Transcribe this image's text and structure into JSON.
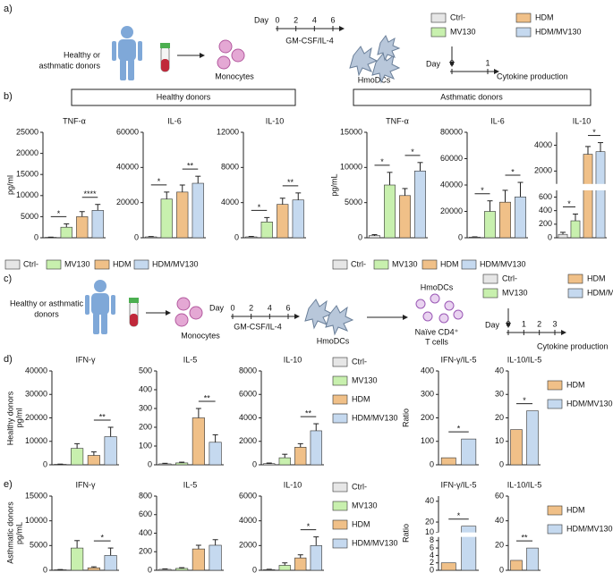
{
  "panel_a": {
    "label": "a)",
    "donors": [
      "Healthy or",
      "asthmatic donors"
    ],
    "cells": "Monocytes",
    "day": "Day",
    "days": [
      0,
      2,
      4,
      6
    ],
    "treatment": "GM-CSF/IL-4",
    "result": "HmoDCs",
    "stim_days": [
      0,
      1
    ],
    "readout": "Cytokine production"
  },
  "panel_b": {
    "label": "b)",
    "healthy": "Healthy donors",
    "asthmatic": "Asthmatic donors"
  },
  "panel_c": {
    "label": "c)",
    "donors": [
      "Healthy or asthmatic",
      "donors"
    ],
    "cells": "Monocytes",
    "day": "Day",
    "days": [
      0,
      2,
      4,
      6
    ],
    "treatment": "GM-CSF/IL-4",
    "result": "HmoDCs",
    "coculture": "HmoDCs",
    "tcells": [
      "Naïve CD4⁺",
      "T cells"
    ],
    "stim_days": [
      0,
      1,
      2,
      3
    ],
    "readout": "Cytokine production"
  },
  "panel_d": {
    "label": "d)",
    "group": "Healthy donors"
  },
  "panel_e": {
    "label": "e)",
    "group": "Asthmatic donors"
  },
  "chart_data": [
    {
      "type": "bar",
      "title": "TNF-α",
      "ylabel": "pg/ml",
      "categories": [
        "Ctrl-",
        "MV130",
        "HDM",
        "HDM/MV130"
      ],
      "colors": [
        "#e6e6e6",
        "#c8f0ae",
        "#f0c088",
        "#c5d9ef"
      ],
      "values": [
        100,
        2500,
        5000,
        6500
      ],
      "errors": [
        50,
        800,
        1200,
        1400
      ],
      "ylim": [
        0,
        25000
      ],
      "yticks": [
        0,
        5000,
        10000,
        15000,
        20000,
        25000
      ],
      "significance": [
        {
          "label": "*",
          "from": "Ctrl-",
          "to": "MV130"
        },
        {
          "label": "****",
          "from": "HDM",
          "to": "HDM/MV130"
        }
      ],
      "legend": "bottom"
    },
    {
      "type": "bar",
      "title": "IL-6",
      "categories": [
        "Ctrl-",
        "MV130",
        "HDM",
        "HDM/MV130"
      ],
      "colors": [
        "#e6e6e6",
        "#c8f0ae",
        "#f0c088",
        "#c5d9ef"
      ],
      "values": [
        500,
        22000,
        26000,
        31000
      ],
      "errors": [
        200,
        4000,
        4000,
        4000
      ],
      "ylim": [
        0,
        60000
      ],
      "yticks": [
        0,
        20000,
        40000,
        60000
      ],
      "significance": [
        {
          "label": "*",
          "from": "Ctrl-",
          "to": "MV130"
        },
        {
          "label": "**",
          "from": "HDM",
          "to": "HDM/MV130"
        }
      ]
    },
    {
      "type": "bar",
      "title": "IL-10",
      "categories": [
        "Ctrl-",
        "MV130",
        "HDM",
        "HDM/MV130"
      ],
      "colors": [
        "#e6e6e6",
        "#c8f0ae",
        "#f0c088",
        "#c5d9ef"
      ],
      "values": [
        100,
        1800,
        3800,
        4300
      ],
      "errors": [
        50,
        500,
        700,
        800
      ],
      "ylim": [
        0,
        12000
      ],
      "yticks": [
        0,
        4000,
        8000,
        12000
      ],
      "significance": [
        {
          "label": "*",
          "from": "Ctrl-",
          "to": "MV130"
        },
        {
          "label": "**",
          "from": "HDM",
          "to": "HDM/MV130"
        }
      ]
    },
    {
      "type": "bar",
      "title": "TNF-α",
      "ylabel": "pg/mL",
      "categories": [
        "Ctrl-",
        "MV130",
        "HDM",
        "HDM/MV130"
      ],
      "colors": [
        "#e6e6e6",
        "#c8f0ae",
        "#f0c088",
        "#c5d9ef"
      ],
      "values": [
        300,
        7500,
        6000,
        9500
      ],
      "errors": [
        150,
        1800,
        1000,
        1200
      ],
      "ylim": [
        0,
        15000
      ],
      "yticks": [
        0,
        5000,
        10000,
        15000
      ],
      "significance": [
        {
          "label": "*",
          "from": "Ctrl-",
          "to": "MV130"
        },
        {
          "label": "*",
          "from": "HDM",
          "to": "HDM/MV130"
        }
      ],
      "legend": "bottom"
    },
    {
      "type": "bar",
      "title": "IL-6",
      "categories": [
        "Ctrl-",
        "MV130",
        "HDM",
        "HDM/MV130"
      ],
      "colors": [
        "#e6e6e6",
        "#c8f0ae",
        "#f0c088",
        "#c5d9ef"
      ],
      "values": [
        500,
        20000,
        27000,
        31000
      ],
      "errors": [
        200,
        8000,
        9000,
        11000
      ],
      "ylim": [
        0,
        80000
      ],
      "yticks": [
        0,
        20000,
        40000,
        60000,
        80000
      ],
      "significance": [
        {
          "label": "*",
          "from": "Ctrl-",
          "to": "MV130"
        },
        {
          "label": "*",
          "from": "HDM",
          "to": "HDM/MV130"
        }
      ]
    },
    {
      "type": "bar",
      "title": "IL-10",
      "categories": [
        "Ctrl-",
        "MV130",
        "HDM",
        "HDM/MV130"
      ],
      "colors": [
        "#e6e6e6",
        "#c8f0ae",
        "#f0c088",
        "#c5d9ef"
      ],
      "values": [
        50,
        250,
        3300,
        3500
      ],
      "errors": [
        30,
        100,
        600,
        700
      ],
      "ylim": [
        0,
        5000
      ],
      "ybreak": [
        700,
        1000
      ],
      "yticks": [
        0,
        200,
        400,
        600,
        2000,
        4000
      ],
      "significance": [
        {
          "label": "*",
          "from": "Ctrl-",
          "to": "MV130"
        },
        {
          "label": "*",
          "from": "HDM",
          "to": "HDM/MV130"
        }
      ]
    },
    {
      "type": "bar",
      "title": "IFN-γ",
      "ylabel": "pg/ml",
      "categories": [
        "Ctrl-",
        "MV130",
        "HDM",
        "HDM/MV130"
      ],
      "colors": [
        "#e6e6e6",
        "#c8f0ae",
        "#f0c088",
        "#c5d9ef"
      ],
      "values": [
        200,
        7000,
        4000,
        12000
      ],
      "errors": [
        100,
        2000,
        1500,
        4000
      ],
      "ylim": [
        0,
        40000
      ],
      "yticks": [
        0,
        10000,
        20000,
        30000,
        40000
      ],
      "significance": [
        {
          "label": "**",
          "from": "HDM",
          "to": "HDM/MV130"
        }
      ]
    },
    {
      "type": "bar",
      "title": "IL-5",
      "categories": [
        "Ctrl-",
        "MV130",
        "HDM",
        "HDM/MV130"
      ],
      "colors": [
        "#e6e6e6",
        "#c8f0ae",
        "#f0c088",
        "#c5d9ef"
      ],
      "values": [
        5,
        10,
        250,
        120
      ],
      "errors": [
        3,
        4,
        50,
        40
      ],
      "ylim": [
        0,
        500
      ],
      "yticks": [
        0,
        100,
        200,
        300,
        400,
        500
      ],
      "significance": [
        {
          "label": "**",
          "from": "HDM",
          "to": "HDM/MV130"
        }
      ]
    },
    {
      "type": "bar",
      "title": "IL-10",
      "categories": [
        "Ctrl-",
        "MV130",
        "HDM",
        "HDM/MV130"
      ],
      "colors": [
        "#e6e6e6",
        "#c8f0ae",
        "#f0c088",
        "#c5d9ef"
      ],
      "values": [
        100,
        600,
        1500,
        2900
      ],
      "errors": [
        50,
        300,
        300,
        600
      ],
      "ylim": [
        0,
        8000
      ],
      "yticks": [
        0,
        2000,
        4000,
        6000,
        8000
      ],
      "significance": [
        {
          "label": "**",
          "from": "HDM",
          "to": "HDM/MV130"
        }
      ],
      "legend": "right"
    },
    {
      "type": "bar",
      "title": "IFN-γ/IL-5",
      "ylabel": "Ratio",
      "categories": [
        "HDM",
        "HDM/MV130"
      ],
      "colors": [
        "#f0c088",
        "#c5d9ef"
      ],
      "values": [
        30,
        110
      ],
      "ylim": [
        0,
        400
      ],
      "yticks": [
        0,
        100,
        200,
        300,
        400
      ],
      "significance": [
        {
          "label": "*",
          "from": "HDM",
          "to": "HDM/MV130"
        }
      ]
    },
    {
      "type": "bar",
      "title": "IL-10/IL-5",
      "categories": [
        "HDM",
        "HDM/MV130"
      ],
      "colors": [
        "#f0c088",
        "#c5d9ef"
      ],
      "values": [
        15,
        23
      ],
      "ylim": [
        0,
        40
      ],
      "yticks": [
        0,
        10,
        20,
        30,
        40
      ],
      "significance": [
        {
          "label": "*",
          "from": "HDM",
          "to": "HDM/MV130"
        }
      ],
      "legend": "right"
    },
    {
      "type": "bar",
      "title": "IFN-γ",
      "ylabel": "pg/mL",
      "categories": [
        "Ctrl-",
        "MV130",
        "HDM",
        "HDM/MV130"
      ],
      "colors": [
        "#e6e6e6",
        "#c8f0ae",
        "#f0c088",
        "#c5d9ef"
      ],
      "values": [
        100,
        4500,
        500,
        3000
      ],
      "errors": [
        50,
        1500,
        200,
        1500
      ],
      "ylim": [
        0,
        15000
      ],
      "yticks": [
        0,
        5000,
        10000,
        15000
      ],
      "significance": [
        {
          "label": "*",
          "from": "HDM",
          "to": "HDM/MV130"
        }
      ]
    },
    {
      "type": "bar",
      "title": "IL-5",
      "categories": [
        "Ctrl-",
        "MV130",
        "HDM",
        "HDM/MV130"
      ],
      "colors": [
        "#e6e6e6",
        "#c8f0ae",
        "#f0c088",
        "#c5d9ef"
      ],
      "values": [
        10,
        20,
        230,
        270
      ],
      "errors": [
        5,
        8,
        40,
        60
      ],
      "ylim": [
        0,
        800
      ],
      "yticks": [
        0,
        200,
        400,
        600,
        800
      ]
    },
    {
      "type": "bar",
      "title": "IL-10",
      "categories": [
        "Ctrl-",
        "MV130",
        "HDM",
        "HDM/MV130"
      ],
      "colors": [
        "#e6e6e6",
        "#c8f0ae",
        "#f0c088",
        "#c5d9ef"
      ],
      "values": [
        50,
        400,
        1000,
        2000
      ],
      "errors": [
        30,
        200,
        250,
        700
      ],
      "ylim": [
        0,
        6000
      ],
      "yticks": [
        0,
        2000,
        4000,
        6000
      ],
      "significance": [
        {
          "label": "*",
          "from": "HDM",
          "to": "HDM/MV130"
        }
      ],
      "legend": "right"
    },
    {
      "type": "bar",
      "title": "IFN-γ/IL-5",
      "ylabel": "Ratio",
      "categories": [
        "HDM",
        "HDM/MV130"
      ],
      "colors": [
        "#f0c088",
        "#c5d9ef"
      ],
      "values": [
        2,
        16
      ],
      "ylim": [
        0,
        45
      ],
      "ybreak": [
        9,
        10
      ],
      "yticks": [
        0,
        2,
        4,
        6,
        8,
        10,
        20,
        40
      ],
      "significance": [
        {
          "label": "*",
          "from": "HDM",
          "to": "HDM/MV130"
        }
      ]
    },
    {
      "type": "bar",
      "title": "IL-10/IL-5",
      "categories": [
        "HDM",
        "HDM/MV130"
      ],
      "colors": [
        "#f0c088",
        "#c5d9ef"
      ],
      "values": [
        8,
        18
      ],
      "ylim": [
        0,
        60
      ],
      "yticks": [
        0,
        20,
        40,
        60
      ],
      "significance": [
        {
          "label": "**",
          "from": "HDM",
          "to": "HDM/MV130"
        }
      ],
      "legend": "right"
    }
  ]
}
